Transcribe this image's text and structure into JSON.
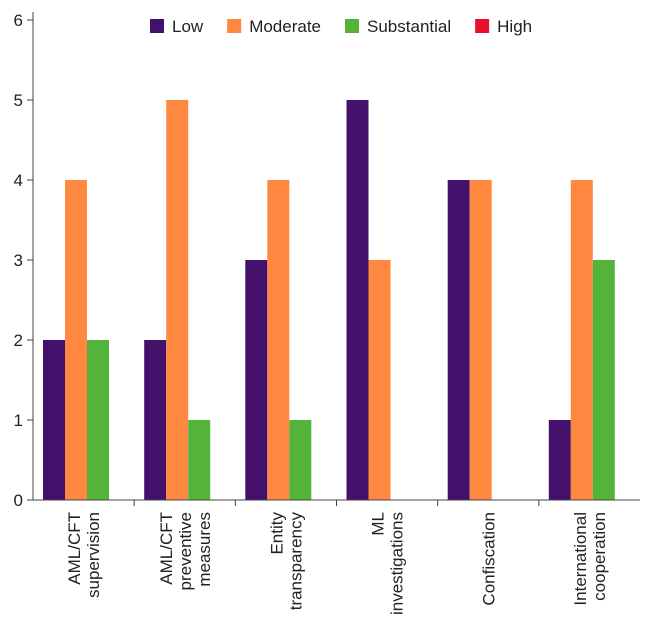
{
  "chart_data": {
    "type": "bar",
    "title": "",
    "xlabel": "",
    "ylabel": "",
    "ylim": [
      0,
      6
    ],
    "yticks": [
      0,
      1,
      2,
      3,
      4,
      5,
      6
    ],
    "grid": false,
    "legend_position": "top",
    "categories": [
      [
        "AML/CFT",
        "supervision"
      ],
      [
        "AML/CFT",
        "preventive",
        "measures"
      ],
      [
        "Entity",
        "transparency"
      ],
      [
        "ML",
        "investigations"
      ],
      [
        "Confiscation"
      ],
      [
        "International",
        "cooperation"
      ]
    ],
    "series": [
      {
        "name": "Low",
        "color": "#43106b",
        "values": [
          2,
          2,
          3,
          5,
          4,
          1
        ]
      },
      {
        "name": "Moderate",
        "color": "#ff8840",
        "values": [
          4,
          5,
          4,
          3,
          4,
          4
        ]
      },
      {
        "name": "Substantial",
        "color": "#54b33a",
        "values": [
          2,
          1,
          1,
          0,
          0,
          3
        ]
      },
      {
        "name": "High",
        "color": "#e8102e",
        "values": [
          0,
          0,
          0,
          0,
          0,
          0
        ]
      }
    ]
  }
}
